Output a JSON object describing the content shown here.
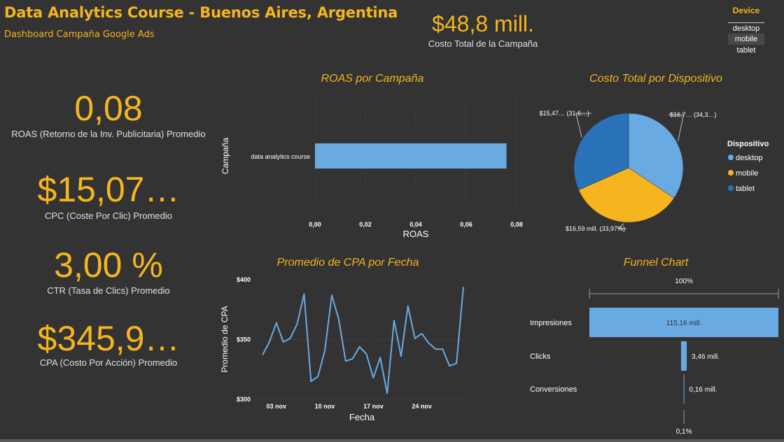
{
  "header": {
    "title": "Data Analytics Course - Buenos Aires, Argentina",
    "subtitle": "Dashboard Campaña Google Ads"
  },
  "total_cost": {
    "value": "$48,8 mill.",
    "label": "Costo Total de la Campaña"
  },
  "slicer": {
    "title": "Device",
    "options": [
      "desktop",
      "mobile",
      "tablet"
    ],
    "selected": "mobile"
  },
  "kpis": {
    "roas": {
      "value": "0,08",
      "label": "ROAS (Retorno de la Inv. Publicitaria) Promedio"
    },
    "cpc": {
      "value": "$15,07…",
      "label": "CPC (Coste Por Clic) Promedio"
    },
    "ctr": {
      "value": "3,00 %",
      "label": "CTR (Tasa de Clics) Promedio"
    },
    "cpa": {
      "value": "$345,9…",
      "label": "CPA (Costo Por Acción) Promedio"
    }
  },
  "colors": {
    "accent": "#f6b51e",
    "light_blue": "#6aaae2",
    "dark_blue": "#2a72b9",
    "gold": "#f6b51e"
  },
  "chart_data": [
    {
      "type": "bar",
      "orientation": "horizontal",
      "title": "ROAS por Campaña",
      "xlabel": "ROAS",
      "ylabel": "Campaña",
      "categories": [
        "data analytics course"
      ],
      "values": [
        0.076
      ],
      "xlim": [
        0,
        0.08
      ],
      "x_ticks": [
        0,
        0.02,
        0.04,
        0.06,
        0.08
      ],
      "x_tick_labels": [
        "0,00",
        "0,02",
        "0,04",
        "0,06",
        "0,08"
      ],
      "grid": true
    },
    {
      "type": "pie",
      "title": "Costo Total por Dispositivo",
      "legend_title": "Dispositivo",
      "legend_position": "right",
      "categories": [
        "desktop",
        "mobile",
        "tablet"
      ],
      "values": [
        34.3,
        33.97,
        31.6
      ],
      "data_labels": [
        "$16,7… (34,3…)",
        "$16,59 mill. (33,97%)",
        "$15,47… (31,6…)"
      ],
      "colors": [
        "#6aaae2",
        "#f6b51e",
        "#2a72b9"
      ]
    },
    {
      "type": "line",
      "title": "Promedio de CPA por Fecha",
      "xlabel": "Fecha",
      "ylabel": "Promedio de CPA",
      "x": [
        "2024-11-01",
        "2024-11-02",
        "2024-11-03",
        "2024-11-04",
        "2024-11-05",
        "2024-11-06",
        "2024-11-07",
        "2024-11-08",
        "2024-11-09",
        "2024-11-10",
        "2024-11-11",
        "2024-11-12",
        "2024-11-13",
        "2024-11-14",
        "2024-11-15",
        "2024-11-16",
        "2024-11-17",
        "2024-11-18",
        "2024-11-19",
        "2024-11-20",
        "2024-11-21",
        "2024-11-22",
        "2024-11-23",
        "2024-11-24",
        "2024-11-25",
        "2024-11-26",
        "2024-11-27",
        "2024-11-28",
        "2024-11-29",
        "2024-11-30"
      ],
      "values": [
        337,
        348,
        364,
        348,
        351,
        363,
        388,
        315,
        319,
        341,
        387,
        367,
        332,
        334,
        344,
        338,
        318,
        335,
        305,
        366,
        336,
        378,
        351,
        355,
        347,
        342,
        342,
        328,
        330,
        394
      ],
      "ylim": [
        300,
        400
      ],
      "y_ticks": [
        300,
        350,
        400
      ],
      "y_tick_labels": [
        "$300",
        "$350",
        "$400"
      ],
      "x_tick_labels": [
        [
          "2024-11-03",
          "03 nov"
        ],
        [
          "2024-11-10",
          "10 nov"
        ],
        [
          "2024-11-17",
          "17 nov"
        ],
        [
          "2024-11-24",
          "24 nov"
        ]
      ],
      "grid": true
    },
    {
      "type": "funnel",
      "title": "Funnel Chart",
      "top_label": "100%",
      "bottom_label": "0,1%",
      "categories": [
        "Impresiones",
        "Clicks",
        "Conversiones"
      ],
      "values": [
        115.16,
        3.46,
        0.16
      ],
      "data_labels": [
        "115,16 mill.",
        "3,46 mill.",
        "0,16 mill."
      ]
    }
  ]
}
